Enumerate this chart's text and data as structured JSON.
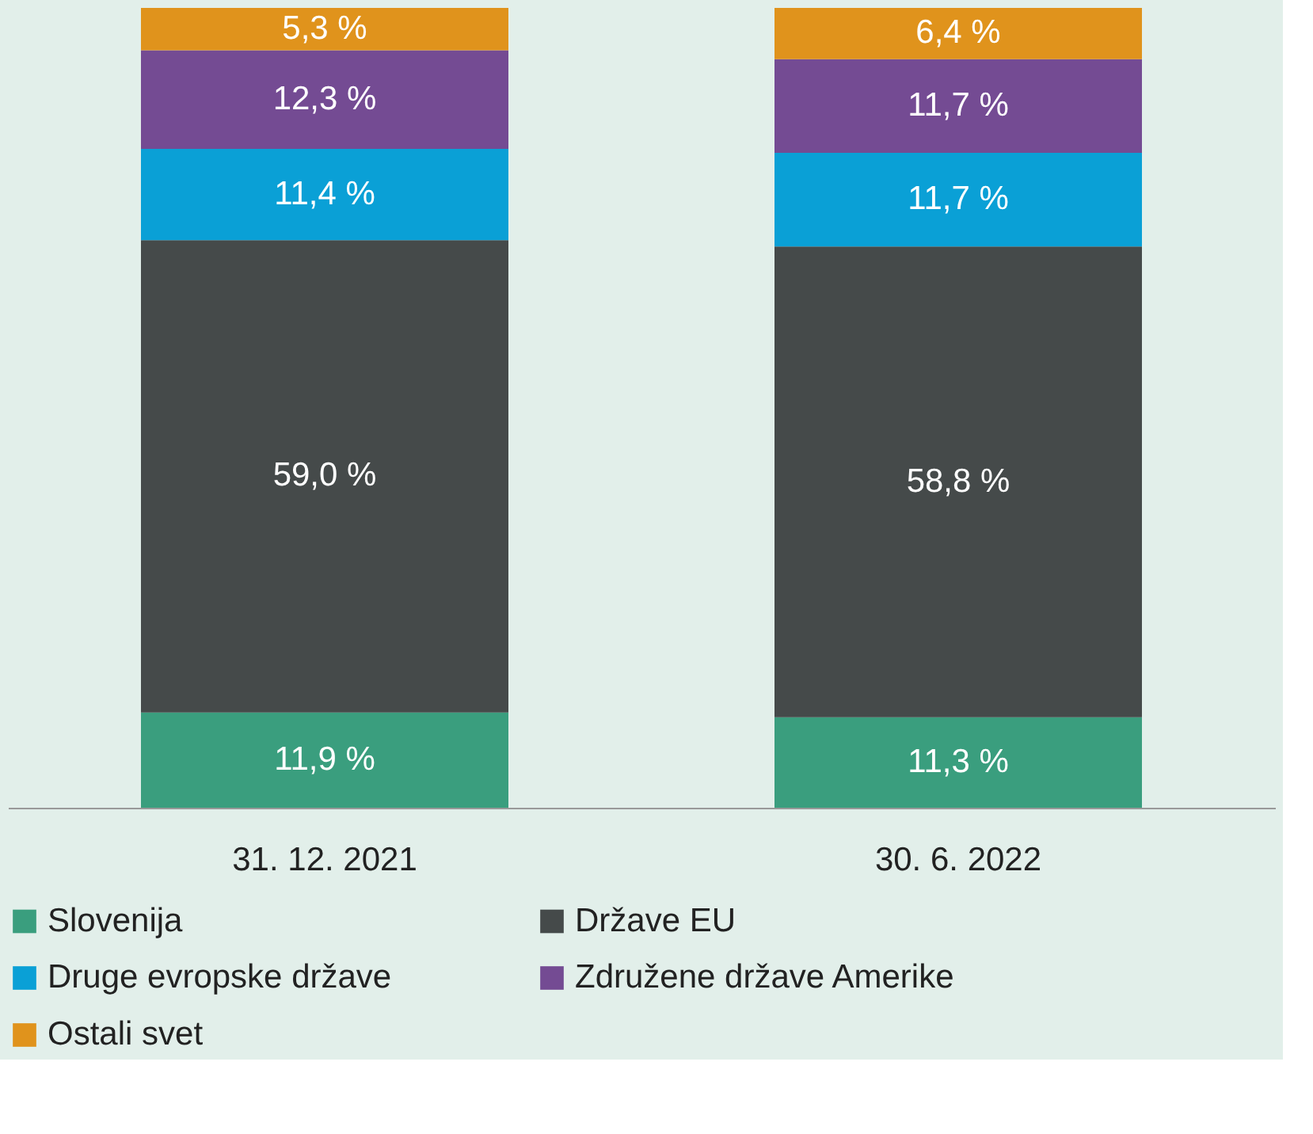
{
  "chart_data": {
    "type": "bar",
    "stacked": true,
    "categories": [
      "31. 12. 2021",
      "30. 6. 2022"
    ],
    "legend": "bottom",
    "series": [
      {
        "name": "Slovenija",
        "color": "#3a9e7e",
        "values": [
          11.9,
          11.3
        ],
        "value_labels": [
          "11,9 %",
          "11,3 %"
        ]
      },
      {
        "name": "Države EU",
        "color": "#454a4a",
        "values": [
          59.0,
          58.8
        ],
        "value_labels": [
          "59,0 %",
          "58,8 %"
        ]
      },
      {
        "name": "Druge evropske države",
        "color": "#0aa0d6",
        "values": [
          11.4,
          11.7
        ],
        "value_labels": [
          "11,4 %",
          "11,7 %"
        ]
      },
      {
        "name": "Združene države Amerike",
        "color": "#744b93",
        "values": [
          12.3,
          11.7
        ],
        "value_labels": [
          "12,3 %",
          "11,7 %"
        ]
      },
      {
        "name": "Ostali svet",
        "color": "#e0931c",
        "values": [
          5.3,
          6.4
        ],
        "value_labels": [
          "5,3 %",
          "6,4 %"
        ]
      }
    ]
  }
}
